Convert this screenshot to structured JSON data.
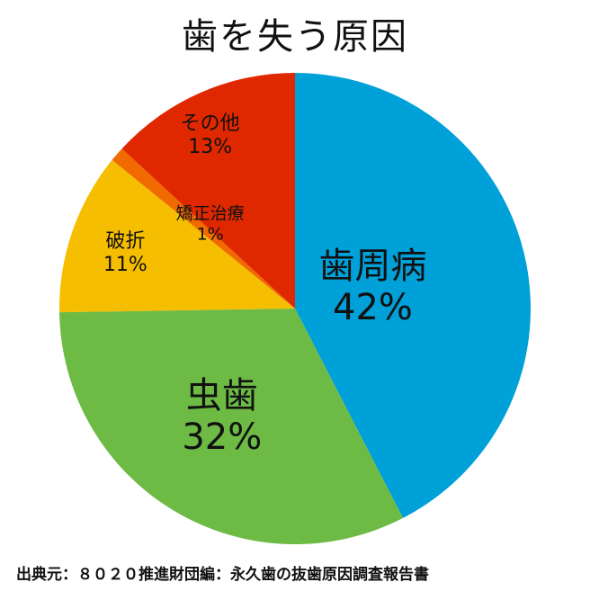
{
  "chart_data": {
    "type": "pie",
    "title": "歯を失う原因",
    "source": "出典元：８０２０推進財団編：永久歯の抜歯原因調査報告書",
    "slices": [
      {
        "name": "歯周病",
        "percent_label": "42%",
        "value": 42,
        "color": "#00a0d8"
      },
      {
        "name": "虫歯",
        "percent_label": "32%",
        "value": 32,
        "color": "#6dbb45"
      },
      {
        "name": "破折",
        "percent_label": "11%",
        "value": 11,
        "color": "#f5be00"
      },
      {
        "name": "矯正治療",
        "percent_label": "1%",
        "value": 1,
        "color": "#f06a00"
      },
      {
        "name": "その他",
        "percent_label": "13%",
        "value": 13,
        "color": "#e02800"
      }
    ]
  }
}
